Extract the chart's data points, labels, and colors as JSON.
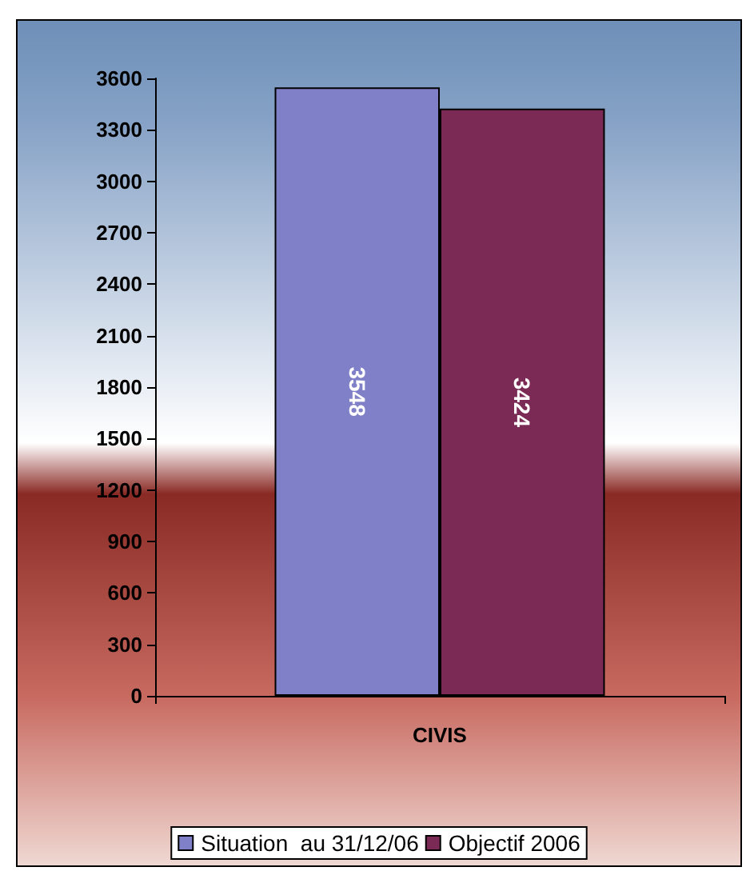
{
  "chart_data": {
    "type": "bar",
    "categories": [
      "CIVIS"
    ],
    "series": [
      {
        "name": "Situation  au 31/12/06",
        "color": "#8080c8",
        "values": [
          3548
        ]
      },
      {
        "name": "Objectif 2006",
        "color": "#7a2a55",
        "values": [
          3424
        ]
      }
    ],
    "ylim": [
      0,
      3600
    ],
    "yticks": [
      0,
      300,
      600,
      900,
      1200,
      1500,
      1800,
      2100,
      2400,
      2700,
      3000,
      3300,
      3600
    ],
    "grid": false,
    "legend": "bottom",
    "data_labels": true
  }
}
